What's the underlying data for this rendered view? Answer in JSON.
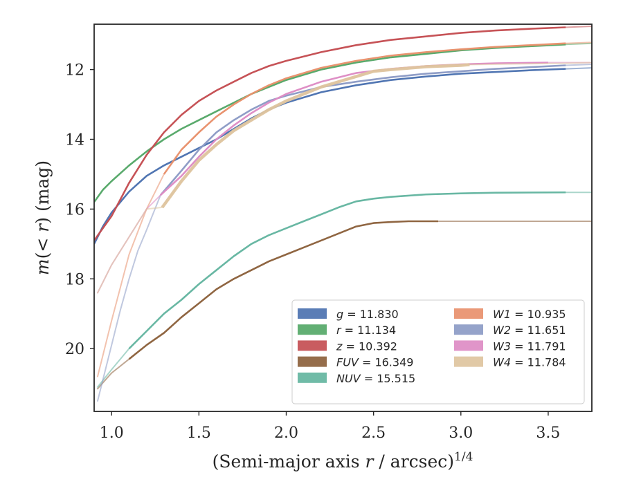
{
  "chart_data": {
    "type": "line",
    "title": "",
    "xlabel": "(Semi-major axis r / arcsec)",
    "xlabel_italic_part": "r",
    "xlabel_exponent": "1/4",
    "ylabel": "m(< r) (mag)",
    "xlim": [
      0.9,
      3.75
    ],
    "ylim": [
      21.8,
      10.7
    ],
    "y_inverted": true,
    "grid": false,
    "legend_position": "lower-right",
    "legend_columns": 2,
    "xticks": [
      1.0,
      1.5,
      2.0,
      2.5,
      3.0,
      3.5
    ],
    "xtick_labels": [
      "1.0",
      "1.5",
      "2.0",
      "2.5",
      "3.0",
      "3.5"
    ],
    "yticks": [
      12,
      14,
      16,
      18,
      20
    ],
    "ytick_labels": [
      "12",
      "14",
      "16",
      "18",
      "20"
    ],
    "series": [
      {
        "name": "g",
        "value": "11.830",
        "color": "#4c72b0",
        "x": [
          0.9,
          0.95,
          1.0,
          1.1,
          1.2,
          1.3,
          1.4,
          1.5,
          1.6,
          1.7,
          1.8,
          1.9,
          2.0,
          2.2,
          2.4,
          2.6,
          2.8,
          3.0,
          3.2,
          3.4,
          3.6,
          3.75
        ],
        "y": [
          17.0,
          16.5,
          16.1,
          15.5,
          15.05,
          14.75,
          14.5,
          14.25,
          14.0,
          13.7,
          13.4,
          13.15,
          12.95,
          12.65,
          12.45,
          12.3,
          12.2,
          12.12,
          12.07,
          12.02,
          11.98,
          11.95
        ],
        "faint_from_x": 3.6
      },
      {
        "name": "r",
        "value": "11.134",
        "color": "#55a868",
        "x": [
          0.9,
          0.95,
          1.0,
          1.1,
          1.2,
          1.3,
          1.4,
          1.5,
          1.6,
          1.7,
          1.8,
          1.9,
          2.0,
          2.2,
          2.4,
          2.6,
          2.8,
          3.0,
          3.2,
          3.4,
          3.6,
          3.75
        ],
        "y": [
          15.8,
          15.45,
          15.2,
          14.75,
          14.35,
          14.0,
          13.7,
          13.45,
          13.2,
          12.95,
          12.7,
          12.5,
          12.3,
          12.0,
          11.8,
          11.65,
          11.55,
          11.45,
          11.38,
          11.33,
          11.28,
          11.25
        ],
        "faint_from_x": 3.6
      },
      {
        "name": "z",
        "value": "10.392",
        "color": "#c44e52",
        "x": [
          0.9,
          0.95,
          1.0,
          1.1,
          1.2,
          1.3,
          1.4,
          1.5,
          1.6,
          1.7,
          1.8,
          1.9,
          2.0,
          2.2,
          2.4,
          2.6,
          2.8,
          3.0,
          3.2,
          3.4,
          3.6,
          3.75
        ],
        "y": [
          16.9,
          16.55,
          16.2,
          15.25,
          14.45,
          13.8,
          13.3,
          12.9,
          12.6,
          12.35,
          12.1,
          11.9,
          11.75,
          11.5,
          11.3,
          11.15,
          11.05,
          10.95,
          10.88,
          10.83,
          10.79,
          10.76
        ],
        "faint_from_x": 3.6
      },
      {
        "name": "FUV",
        "value": "16.349",
        "color": "#8c613c",
        "x": [
          0.92,
          1.0,
          1.1,
          1.2,
          1.3,
          1.4,
          1.5,
          1.6,
          1.7,
          1.8,
          1.9,
          2.0,
          2.1,
          2.2,
          2.3,
          2.4,
          2.5,
          2.6,
          2.7,
          2.87,
          3.2,
          3.5,
          3.75
        ],
        "y": [
          21.15,
          20.7,
          20.3,
          19.9,
          19.55,
          19.1,
          18.7,
          18.3,
          18.0,
          17.75,
          17.5,
          17.3,
          17.1,
          16.9,
          16.7,
          16.5,
          16.4,
          16.37,
          16.35,
          16.35,
          16.35,
          16.35,
          16.35
        ],
        "faint_until_x": 1.1,
        "faint_from_x": 2.87
      },
      {
        "name": "NUV",
        "value": "15.515",
        "color": "#64b5a0",
        "x": [
          0.92,
          1.0,
          1.1,
          1.2,
          1.3,
          1.4,
          1.5,
          1.6,
          1.7,
          1.8,
          1.9,
          2.0,
          2.1,
          2.2,
          2.3,
          2.4,
          2.5,
          2.6,
          2.8,
          3.0,
          3.2,
          3.6,
          3.75
        ],
        "y": [
          21.1,
          20.6,
          20.0,
          19.5,
          19.0,
          18.6,
          18.15,
          17.75,
          17.35,
          17.0,
          16.75,
          16.55,
          16.35,
          16.15,
          15.95,
          15.78,
          15.7,
          15.65,
          15.58,
          15.55,
          15.53,
          15.52,
          15.52
        ],
        "faint_until_x": 1.1,
        "faint_from_x": 3.6
      },
      {
        "name": "W1",
        "value": "10.935",
        "color": "#e8906c",
        "x": [
          0.92,
          1.0,
          1.1,
          1.2,
          1.3,
          1.4,
          1.5,
          1.6,
          1.7,
          1.8,
          1.9,
          2.0,
          2.2,
          2.4,
          2.6,
          2.8,
          3.0,
          3.2,
          3.4,
          3.6,
          3.75
        ],
        "y": [
          20.8,
          19.2,
          17.3,
          16.0,
          15.0,
          14.3,
          13.8,
          13.35,
          13.0,
          12.7,
          12.45,
          12.25,
          11.95,
          11.75,
          11.6,
          11.5,
          11.42,
          11.35,
          11.3,
          11.25,
          11.22
        ],
        "faint_until_x": 1.28,
        "faint_from_x": 3.6
      },
      {
        "name": "W2",
        "value": "11.651",
        "color": "#8c9bc5",
        "x": [
          0.92,
          1.0,
          1.05,
          1.1,
          1.15,
          1.2,
          1.28,
          1.4,
          1.5,
          1.6,
          1.7,
          1.8,
          1.9,
          2.0,
          2.2,
          2.4,
          2.6,
          2.8,
          3.0,
          3.2,
          3.4,
          3.6,
          3.75
        ],
        "y": [
          21.5,
          19.9,
          18.9,
          18.0,
          17.2,
          16.6,
          15.6,
          14.9,
          14.3,
          13.8,
          13.45,
          13.15,
          12.9,
          12.75,
          12.5,
          12.35,
          12.22,
          12.12,
          12.05,
          11.98,
          11.93,
          11.88,
          11.85
        ],
        "faint_until_x": 1.28,
        "faint_from_x": 3.6
      },
      {
        "name": "W3",
        "value": "11.791",
        "color": "#dd8cc4",
        "x": [
          0.92,
          1.0,
          1.1,
          1.2,
          1.28,
          1.4,
          1.5,
          1.6,
          1.7,
          1.8,
          1.9,
          2.0,
          2.2,
          2.4,
          2.6,
          2.8,
          3.0,
          3.2,
          3.5,
          3.6,
          3.75
        ],
        "y": [
          18.4,
          17.6,
          16.8,
          16.0,
          15.6,
          15.05,
          14.5,
          14.0,
          13.6,
          13.25,
          12.95,
          12.7,
          12.35,
          12.1,
          11.98,
          11.9,
          11.85,
          11.82,
          11.8,
          11.8,
          11.8
        ],
        "faint_until_x": 1.28,
        "faint_from_x": 3.5
      },
      {
        "name": "W4",
        "value": "11.784",
        "color": "#dec49e",
        "x": [
          0.92,
          1.0,
          1.1,
          1.2,
          1.29,
          1.4,
          1.5,
          1.6,
          1.7,
          1.8,
          1.9,
          2.0,
          2.2,
          2.4,
          2.5,
          2.6,
          2.8,
          3.0,
          3.05,
          3.3,
          3.6,
          3.75
        ],
        "y": [
          18.4,
          17.6,
          16.8,
          16.0,
          15.95,
          15.2,
          14.6,
          14.15,
          13.75,
          13.45,
          13.15,
          12.9,
          12.5,
          12.2,
          12.05,
          12.0,
          11.92,
          11.88,
          11.86,
          11.84,
          11.82,
          11.8
        ],
        "faint_until_x": 1.29,
        "faint_from_x": 3.05,
        "thick": true
      }
    ]
  }
}
